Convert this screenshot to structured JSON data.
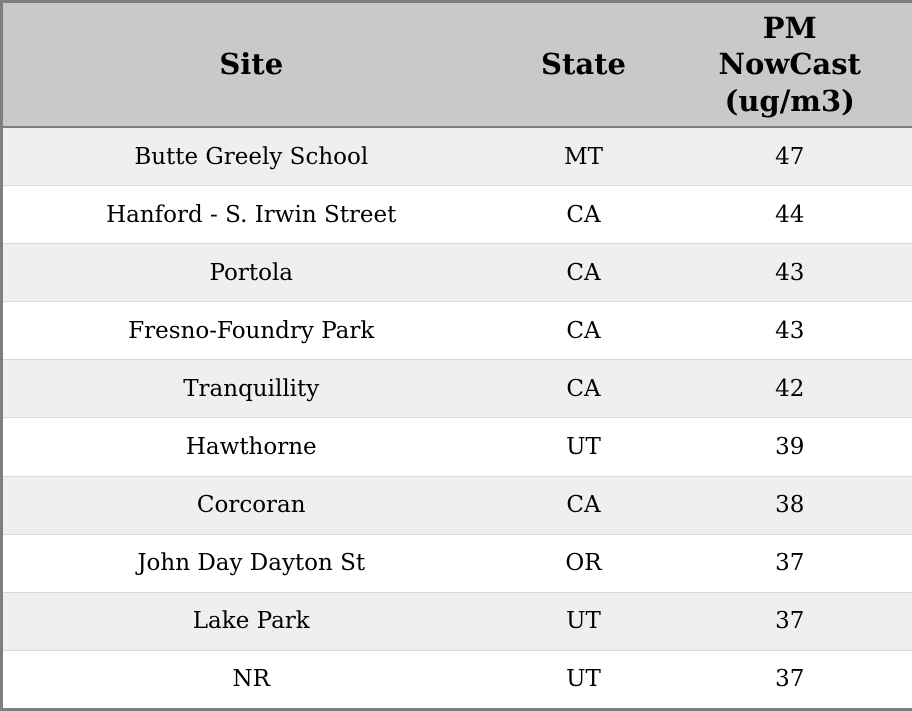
{
  "chart_data": {
    "type": "table",
    "title": "",
    "columns": [
      "Site",
      "State",
      "PM NowCast (ug/m3)"
    ],
    "rows": [
      [
        "Butte Greely School",
        "MT",
        47
      ],
      [
        "Hanford - S. Irwin Street",
        "CA",
        44
      ],
      [
        "Portola",
        "CA",
        43
      ],
      [
        "Fresno-Foundry Park",
        "CA",
        43
      ],
      [
        "Tranquillity",
        "CA",
        42
      ],
      [
        "Hawthorne",
        "UT",
        39
      ],
      [
        "Corcoran",
        "CA",
        38
      ],
      [
        "John Day Dayton St",
        "OR",
        37
      ],
      [
        "Lake Park",
        "UT",
        37
      ],
      [
        "NR",
        "UT",
        37
      ]
    ],
    "layout": {
      "striped": true,
      "stripe_pattern": "odd-data-rows-shaded",
      "alignment": "center"
    },
    "colors": {
      "header_bg": "#c9c9c9",
      "row_alt_bg": "#efefef",
      "row_bg": "#ffffff",
      "border": "#7f7f7f",
      "text": "#000000"
    }
  }
}
